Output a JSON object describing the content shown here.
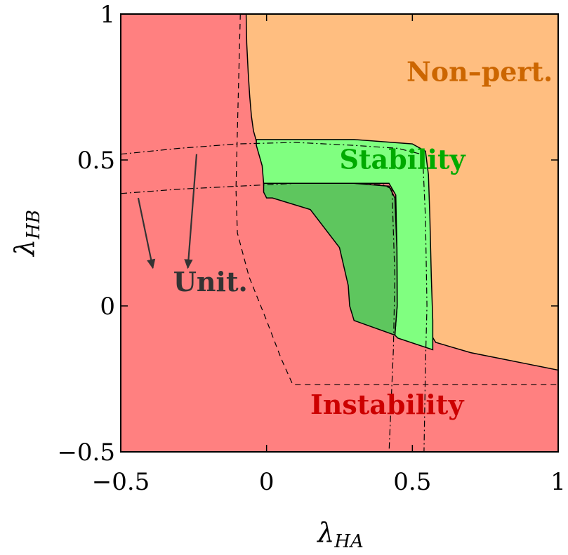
{
  "chart_data": {
    "type": "region-plot",
    "xlabel": "λ",
    "xlabel_sub": "HA",
    "ylabel": "λ",
    "ylabel_sub": "HB",
    "xlim": [
      -0.5,
      1
    ],
    "ylim": [
      -0.5,
      1
    ],
    "x_ticks": [
      {
        "value": -0.5,
        "label": "−0.5"
      },
      {
        "value": 0,
        "label": "0"
      },
      {
        "value": 0.5,
        "label": "0.5"
      },
      {
        "value": 1,
        "label": "1"
      }
    ],
    "y_ticks": [
      {
        "value": -0.5,
        "label": "−0.5"
      },
      {
        "value": 0,
        "label": "0"
      },
      {
        "value": 0.5,
        "label": "0.5"
      },
      {
        "value": 1,
        "label": "1"
      }
    ],
    "regions": [
      {
        "name": "Instability",
        "label": "Instability",
        "color": "#ff8080",
        "label_color": "#cc0000",
        "label_at": [
          0.15,
          -0.37
        ]
      },
      {
        "name": "Non-perturbative",
        "label": "Non–pert.",
        "color": "#ffbe80",
        "label_color": "#cc6600",
        "label_at": [
          0.48,
          0.77
        ],
        "boundary": [
          [
            -0.07,
            1.0
          ],
          [
            -0.068,
            0.9
          ],
          [
            -0.063,
            0.8
          ],
          [
            -0.058,
            0.72
          ],
          [
            -0.052,
            0.65
          ],
          [
            -0.045,
            0.6
          ],
          [
            -0.035,
            0.565
          ],
          [
            -0.02,
            0.56
          ],
          [
            0.1,
            0.555
          ],
          [
            0.3,
            0.55
          ],
          [
            0.48,
            0.545
          ],
          [
            0.53,
            0.53
          ],
          [
            0.545,
            0.5
          ],
          [
            0.55,
            0.4
          ],
          [
            0.555,
            0.2
          ],
          [
            0.56,
            0.0
          ],
          [
            0.565,
            -0.1
          ],
          [
            0.58,
            -0.125
          ],
          [
            0.7,
            -0.16
          ],
          [
            0.8,
            -0.18
          ],
          [
            0.9,
            -0.2
          ],
          [
            1.0,
            -0.22
          ],
          [
            1.0,
            1.0
          ]
        ]
      },
      {
        "name": "Stability (unitarity)",
        "label": "Stability",
        "color": "#80ff80",
        "label_color": "#00aa00",
        "label_at": [
          0.25,
          0.47
        ],
        "boundary": [
          [
            -0.035,
            0.57
          ],
          [
            0.1,
            0.57
          ],
          [
            0.3,
            0.57
          ],
          [
            0.5,
            0.555
          ],
          [
            0.545,
            0.53
          ],
          [
            0.555,
            0.45
          ],
          [
            0.56,
            0.3
          ],
          [
            0.565,
            0.1
          ],
          [
            0.57,
            -0.05
          ],
          [
            0.57,
            -0.15
          ],
          [
            0.45,
            -0.11
          ],
          [
            0.44,
            -0.1
          ],
          [
            0.448,
            0.0
          ],
          [
            0.447,
            0.2
          ],
          [
            0.443,
            0.38
          ],
          [
            0.42,
            0.42
          ],
          [
            0.3,
            0.42
          ],
          [
            0.1,
            0.42
          ],
          [
            -0.01,
            0.42
          ],
          [
            -0.015,
            0.48
          ],
          [
            -0.035,
            0.55
          ]
        ]
      },
      {
        "name": "Stability (perturbative)",
        "color": "#5ec65e",
        "boundary": [
          [
            -0.01,
            0.42
          ],
          [
            0.1,
            0.42
          ],
          [
            0.3,
            0.42
          ],
          [
            0.42,
            0.41
          ],
          [
            0.44,
            0.37
          ],
          [
            0.447,
            0.2
          ],
          [
            0.448,
            0.0
          ],
          [
            0.44,
            -0.1
          ],
          [
            0.3,
            -0.05
          ],
          [
            0.285,
            0.0
          ],
          [
            0.28,
            0.07
          ],
          [
            0.25,
            0.2
          ],
          [
            0.15,
            0.33
          ],
          [
            0.02,
            0.37
          ],
          [
            0.0,
            0.37
          ],
          [
            -0.01,
            0.39
          ]
        ]
      }
    ],
    "lines": [
      {
        "name": "dashed-bound",
        "style": "dashed",
        "points": [
          [
            -0.09,
            1.0
          ],
          [
            -0.095,
            0.8
          ],
          [
            -0.1,
            0.6
          ],
          [
            -0.105,
            0.4
          ],
          [
            -0.1,
            0.25
          ],
          [
            -0.06,
            0.1
          ],
          [
            0.0,
            -0.05
          ],
          [
            0.05,
            -0.18
          ],
          [
            0.09,
            -0.27
          ],
          [
            0.3,
            -0.27
          ],
          [
            0.6,
            -0.27
          ],
          [
            0.8,
            -0.27
          ],
          [
            1.0,
            -0.27
          ]
        ]
      },
      {
        "name": "dashdot-upper",
        "style": "dashdot",
        "points": [
          [
            -0.5,
            0.52
          ],
          [
            -0.3,
            0.54
          ],
          [
            -0.1,
            0.555
          ],
          [
            0.1,
            0.56
          ],
          [
            0.3,
            0.55
          ],
          [
            0.45,
            0.54
          ],
          [
            0.53,
            0.52
          ]
        ]
      },
      {
        "name": "dashdot-lower",
        "style": "dashdot",
        "points": [
          [
            -0.5,
            0.385
          ],
          [
            -0.3,
            0.4
          ],
          [
            -0.1,
            0.41
          ],
          [
            0.1,
            0.42
          ],
          [
            0.3,
            0.42
          ],
          [
            0.4,
            0.415
          ],
          [
            0.43,
            0.4
          ]
        ]
      },
      {
        "name": "dashdot-vert-1",
        "style": "dashdot",
        "points": [
          [
            0.43,
            0.4
          ],
          [
            0.44,
            0.1
          ],
          [
            0.435,
            -0.15
          ],
          [
            0.42,
            -0.5
          ]
        ]
      },
      {
        "name": "dashdot-vert-2",
        "style": "dashdot",
        "points": [
          [
            0.535,
            0.52
          ],
          [
            0.545,
            0.3
          ],
          [
            0.55,
            0.0
          ],
          [
            0.545,
            -0.2
          ],
          [
            0.54,
            -0.5
          ]
        ]
      }
    ],
    "annotations": [
      {
        "text": "Unit.",
        "color": "#333333",
        "at": [
          -0.32,
          0.05
        ]
      },
      {
        "name": "arrow-1",
        "from": [
          -0.44,
          0.37
        ],
        "to": [
          -0.39,
          0.13
        ]
      },
      {
        "name": "arrow-2",
        "from": [
          -0.24,
          0.52
        ],
        "to": [
          -0.27,
          0.13
        ]
      }
    ]
  }
}
